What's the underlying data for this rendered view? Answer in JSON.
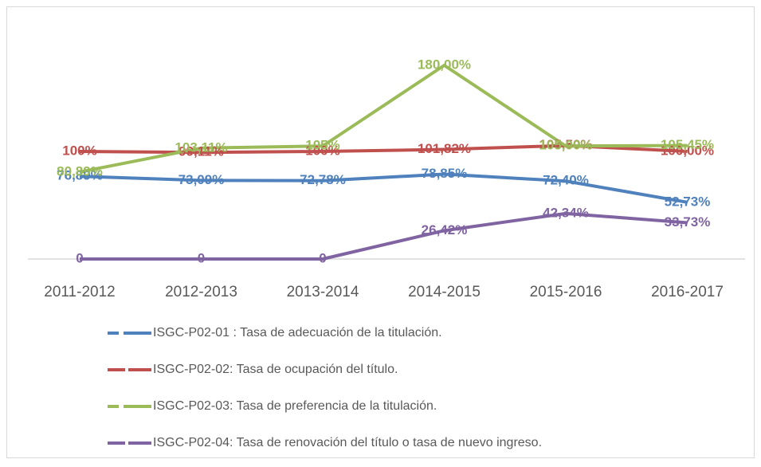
{
  "chart_data": {
    "type": "line",
    "categories": [
      "2011-2012",
      "2012-2013",
      "2013-2014",
      "2014-2015",
      "2015-2016",
      "2016-2017"
    ],
    "series": [
      {
        "name": "ISGC-P02-01 : Tasa de adecuación de la titulación.",
        "color": "#4f81bd",
        "values": [
          76.89,
          73.09,
          72.78,
          78.85,
          72.4,
          52.73
        ],
        "value_labels": [
          "76,89%",
          "73,09%",
          "72,78%",
          "78,85%",
          "72,40%",
          "52,73%"
        ]
      },
      {
        "name": "ISGC-P02-02: Tasa de ocupación del título.",
        "color": "#c0504d",
        "values": [
          100,
          99.11,
          100,
          101.82,
          105.5,
          100.0
        ],
        "value_labels": [
          "100%",
          "99,11%",
          "100%",
          "101,82%",
          "105,50%",
          "100,00%"
        ]
      },
      {
        "name": "ISGC-P02-03: Tasa de preferencia de la titulación.",
        "color": "#9bbb59",
        "values": [
          80.89,
          103.11,
          105,
          180.0,
          105.0,
          105.45
        ],
        "value_labels": [
          "80,89%",
          "103,11%",
          "105%",
          "180,00%",
          "105,00%",
          "105,45%"
        ]
      },
      {
        "name": "ISGC-P02-04: Tasa de renovación del título o tasa de nuevo ingreso.",
        "color": "#8064a2",
        "values": [
          0,
          0,
          0,
          26.42,
          42.34,
          33.73
        ],
        "value_labels": [
          "0",
          "0",
          "0",
          "26,42%",
          "42,34%",
          "33,73%"
        ]
      }
    ]
  }
}
